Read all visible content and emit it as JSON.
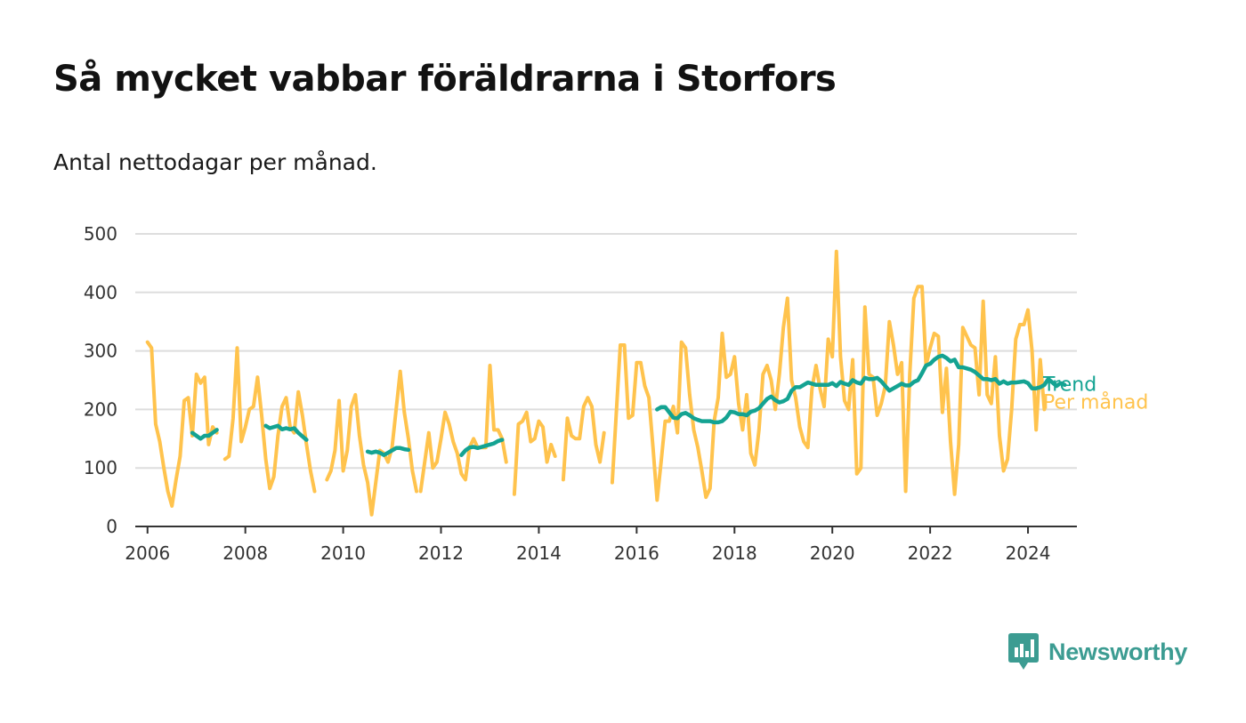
{
  "title": "Så mycket vabbar föräldrarna i Storfors",
  "subtitle": "Antal nettodagar per månad.",
  "brand": {
    "name": "Newsworthy",
    "icon": "newsworthy-logo-icon",
    "color": "#3c9c92"
  },
  "chart_data": {
    "type": "line",
    "title": "Så mycket vabbar föräldrarna i Storfors",
    "subtitle": "Antal nettodagar per månad.",
    "xlim": [
      "2005-10",
      "2025-01"
    ],
    "ylim": [
      0,
      500
    ],
    "x_ticks": [
      "2006",
      "2008",
      "2010",
      "2012",
      "2014",
      "2016",
      "2018",
      "2020",
      "2022",
      "2024"
    ],
    "y_ticks": [
      0,
      100,
      200,
      300,
      400,
      500
    ],
    "grid": "horizontal",
    "colors": {
      "Per månad": "#ffc34d",
      "Trend": "#14a392",
      "grid": "#dddddd",
      "axis": "#333333"
    },
    "series": [
      {
        "name": "Per månad",
        "segments": [
          {
            "start": "2006-01",
            "values": [
              315,
              305,
              175,
              145,
              100,
              60,
              35,
              80,
              120,
              215,
              220,
              155,
              260,
              245,
              255,
              140,
              170,
              160
            ]
          },
          {
            "start": "2007-08",
            "values": [
              115,
              120,
              185,
              305,
              145,
              170,
              200,
              205,
              255,
              190,
              115,
              65,
              85,
              155,
              205,
              220,
              170,
              160,
              230,
              190,
              140,
              95,
              60
            ]
          },
          {
            "start": "2009-09",
            "values": [
              80,
              95,
              130,
              215,
              95,
              130,
              205,
              225,
              155,
              105,
              75,
              20,
              75,
              130,
              125,
              110,
              135,
              200,
              265,
              195,
              150,
              95,
              60
            ]
          },
          {
            "start": "2011-08",
            "values": [
              60,
              110,
              160,
              100,
              110,
              150,
              195,
              175,
              145,
              125,
              90,
              80,
              135,
              150,
              135,
              135,
              135,
              275,
              165,
              165,
              150,
              110
            ]
          },
          {
            "start": "2013-07",
            "values": [
              55,
              175,
              180,
              195,
              145,
              150,
              180,
              170,
              110,
              140,
              120
            ]
          },
          {
            "start": "2014-07",
            "values": [
              80,
              185,
              155,
              150,
              150,
              205,
              220,
              205,
              140,
              110,
              160
            ]
          },
          {
            "start": "2015-07",
            "values": [
              75,
              195,
              310,
              310,
              185,
              190,
              280,
              280,
              240,
              220,
              135,
              45,
              110,
              180,
              180,
              205,
              160,
              315,
              305,
              225,
              165,
              135,
              95,
              50,
              65,
              180,
              220,
              330,
              255,
              260,
              290,
              210,
              165,
              225,
              125,
              105,
              165,
              260,
              275,
              250,
              200,
              260,
              340,
              390,
              250,
              220,
              170,
              145,
              135,
              235,
              275,
              235,
              205,
              320,
              290,
              470,
              290,
              215,
              200,
              285,
              90,
              100,
              375,
              260,
              255,
              190,
              210,
              240,
              350,
              310,
              260,
              280,
              60,
              260,
              390,
              410,
              410,
              275,
              305,
              330,
              325,
              195,
              270,
              145,
              55,
              140,
              340,
              325,
              310,
              305,
              225,
              385,
              225,
              210,
              290,
              155,
              95,
              115,
              200,
              320,
              345,
              345,
              370,
              300,
              165,
              285,
              200
            ]
          }
        ]
      },
      {
        "name": "Trend",
        "segments": [
          {
            "start": "2006-12",
            "values": [
              160,
              155,
              150,
              155,
              155,
              160,
              165
            ]
          },
          {
            "start": "2008-06",
            "values": [
              172,
              168,
              170,
              172,
              166,
              168,
              166,
              168,
              160,
              154,
              148
            ]
          },
          {
            "start": "2010-07",
            "values": [
              128,
              126,
              128,
              126,
              122,
              126,
              130,
              134,
              134,
              132,
              131
            ]
          },
          {
            "start": "2012-06",
            "values": [
              122,
              130,
              135,
              136,
              134,
              136,
              138,
              140,
              142,
              146,
              148
            ]
          },
          {
            "start": "2016-06",
            "values": [
              200,
              204,
              204,
              195,
              186,
              185,
              192,
              194,
              190,
              185,
              182,
              180,
              180,
              180,
              178,
              178,
              180,
              186,
              196,
              195,
              192,
              192,
              190,
              196,
              198,
              202,
              210,
              218,
              222,
              216,
              212,
              214,
              218,
              232,
              238,
              238,
              242,
              246,
              244,
              242,
              242,
              242,
              242,
              245,
              240,
              247,
              244,
              242,
              250,
              246,
              244,
              254,
              252,
              252,
              254,
              248,
              240,
              232,
              236,
              240,
              244,
              241,
              241,
              247,
              250,
              262,
              275,
              278,
              285,
              290,
              292,
              288,
              282,
              285,
              272,
              272,
              270,
              268,
              264,
              258,
              252,
              252,
              250,
              252,
              244,
              248,
              244,
              246,
              246,
              247,
              248,
              245,
              236,
              236,
              238,
              242,
              252,
              246,
              240,
              245,
              242
            ]
          }
        ]
      }
    ],
    "end_labels": [
      {
        "series": "Trend",
        "text": "Trend"
      },
      {
        "series": "Per månad",
        "text": "Per månad"
      }
    ]
  }
}
